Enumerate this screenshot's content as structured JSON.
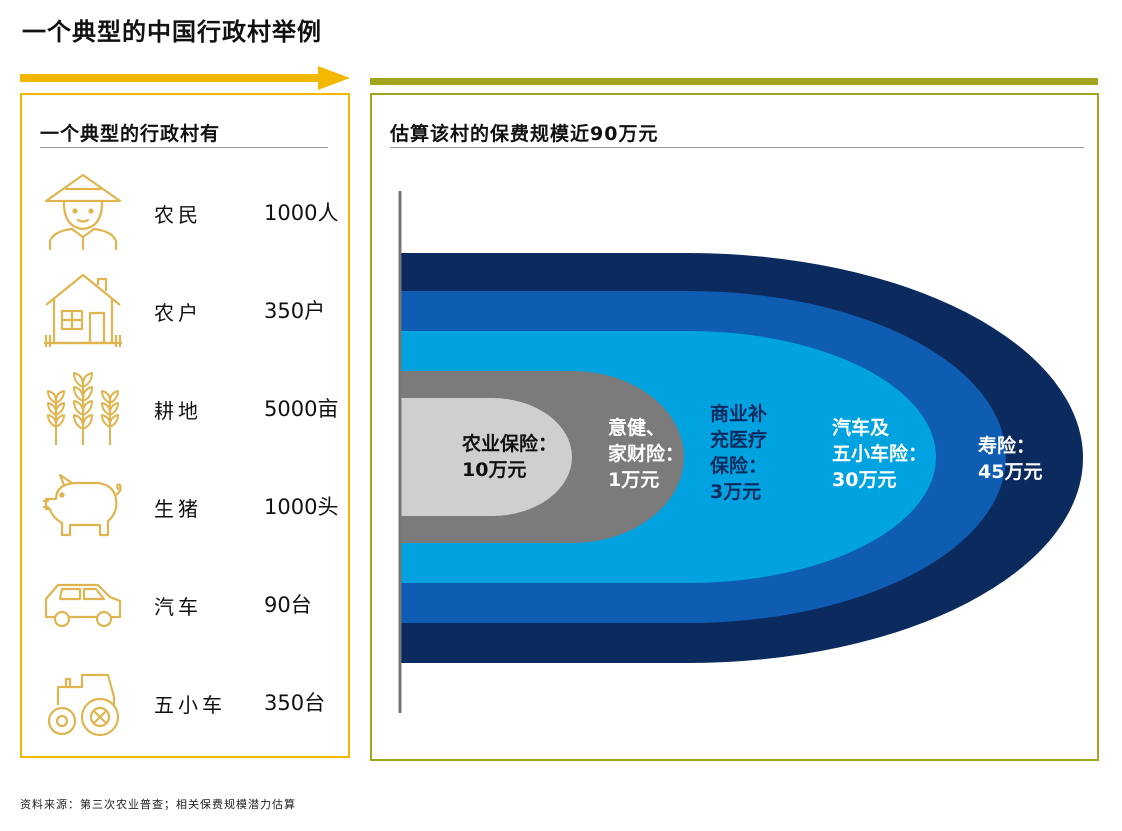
{
  "title": "一个典型的中国行政村举例",
  "left_panel": {
    "heading": "一个典型的行政村有",
    "items": [
      {
        "icon": "farmer-icon",
        "label": "农民",
        "value": "1000人"
      },
      {
        "icon": "house-icon",
        "label": "农户",
        "value": "350户"
      },
      {
        "icon": "wheat-icon",
        "label": "耕地",
        "value": "5000亩"
      },
      {
        "icon": "pig-icon",
        "label": "生猪",
        "value": "1000头"
      },
      {
        "icon": "car-icon",
        "label": "汽车",
        "value": "90台"
      },
      {
        "icon": "tractor-icon",
        "label": "五小车",
        "value": "350台"
      }
    ]
  },
  "right_panel": {
    "heading": "估算该村的保费规模近90万元",
    "rings": [
      {
        "label_lines": [
          "寿险：",
          "45万元"
        ],
        "color": "#0b2a5e",
        "text_color": "#ffffff"
      },
      {
        "label_lines": [
          "汽车及",
          "五小车险：",
          "30万元"
        ],
        "color": "#0f5cb3",
        "text_color": "#ffffff"
      },
      {
        "label_lines": [
          "商业补",
          "充医疗",
          "保险：",
          "3万元"
        ],
        "color": "#00a3e0",
        "text_color": "#0b2a5e"
      },
      {
        "label_lines": [
          "意健、",
          "家财险：",
          "1万元"
        ],
        "color": "#7b7b7b",
        "text_color": "#ffffff"
      },
      {
        "label_lines": [
          "农业保险：",
          "10万元"
        ],
        "color": "#cfcfcf",
        "text_color": "#111111"
      }
    ]
  },
  "source": "资料来源：第三次农业普查；相关保费规模潜力估算",
  "colors": {
    "yellow_accent": "#f5b800",
    "olive_accent": "#a3a61c",
    "icon_gold": "#e0b550"
  }
}
